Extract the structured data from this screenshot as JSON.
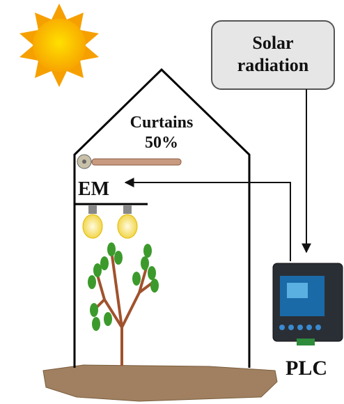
{
  "solar_box": {
    "lines": [
      "Solar",
      "radiation"
    ]
  },
  "curtains": {
    "label": "Curtains",
    "value": "50%"
  },
  "em": {
    "label": "EM"
  },
  "plc": {
    "label": "PLC"
  }
}
